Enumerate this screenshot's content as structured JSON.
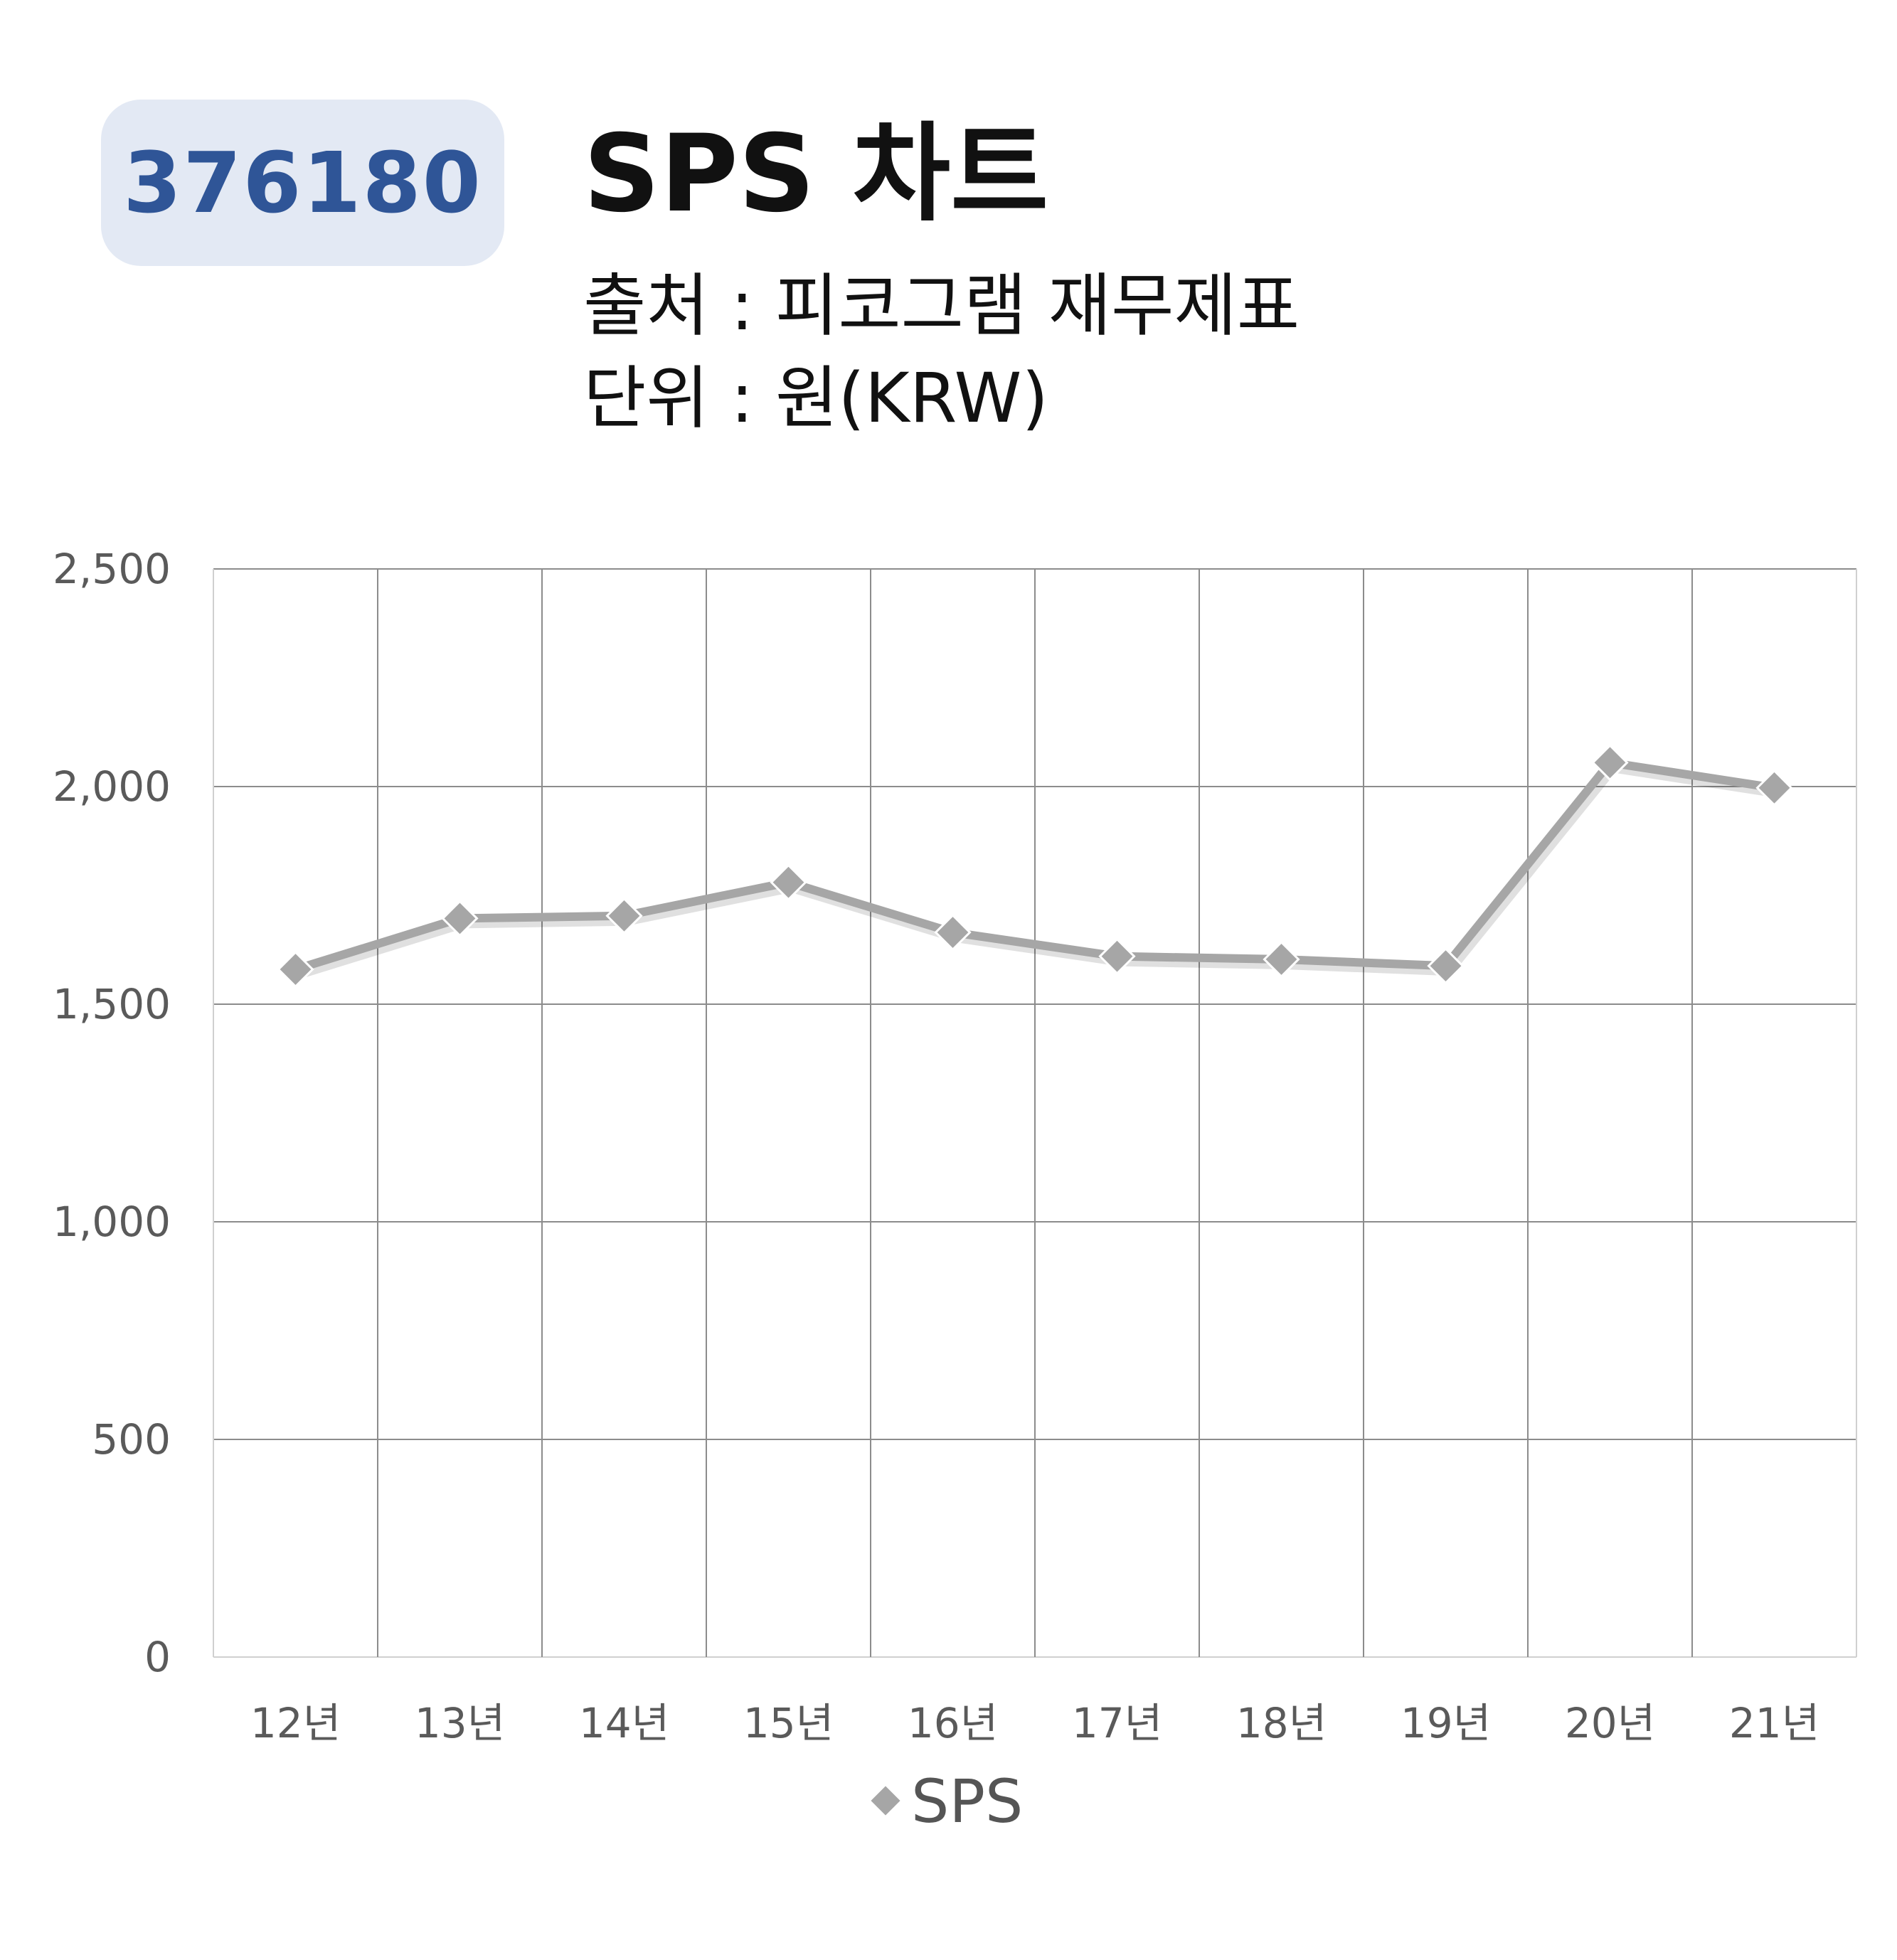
{
  "header": {
    "code": "376180",
    "title": "SPS 차트",
    "source": "출처 : 피코그램 재무제표",
    "unit": "단위 : 원(KRW)"
  },
  "chart_data": {
    "type": "line",
    "categories": [
      "12년",
      "13년",
      "14년",
      "15년",
      "16년",
      "17년",
      "18년",
      "19년",
      "20년",
      "21년"
    ],
    "series": [
      {
        "name": "SPS",
        "values": [
          1580,
          1697,
          1703,
          1780,
          1665,
          1610,
          1603,
          1588,
          2055,
          1997
        ]
      }
    ],
    "y_ticks": [
      "0",
      "500",
      "1,000",
      "1,500",
      "2,000",
      "2,500"
    ],
    "ylim": [
      0,
      2500
    ],
    "grid": true,
    "legend_position": "bottom",
    "colors": {
      "line": "#a6a6a6",
      "marker": "#a6a6a6",
      "grid": "#8c8c8c"
    }
  }
}
